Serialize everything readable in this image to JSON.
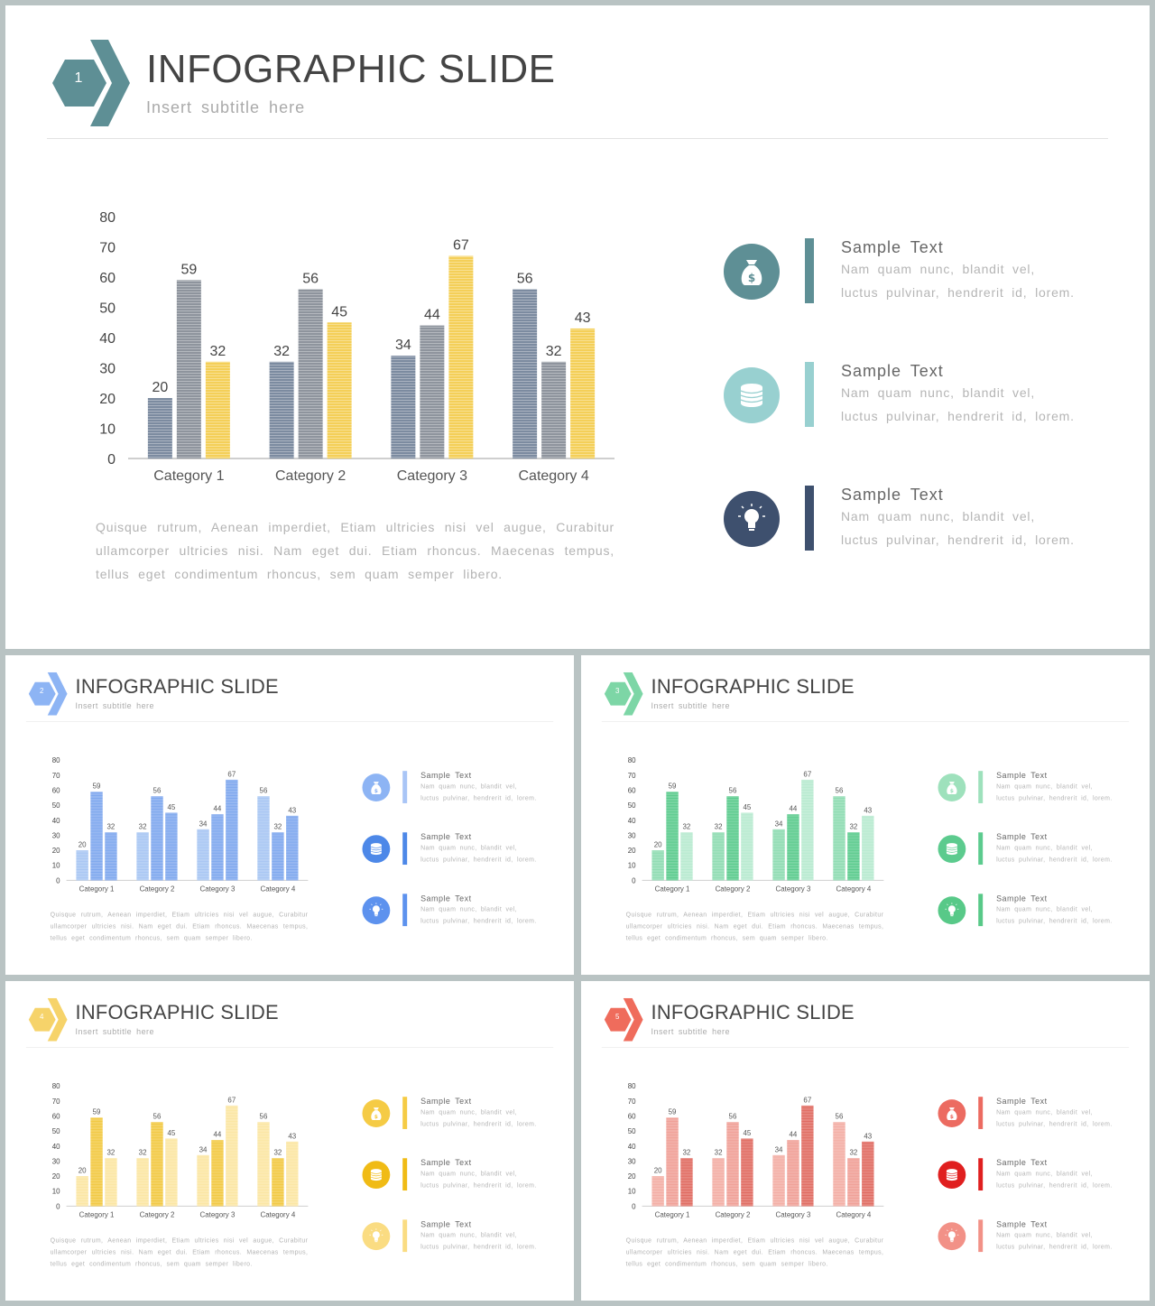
{
  "slide": {
    "title": "INFOGRAPHIC SLIDE",
    "subtitle": "Insert  subtitle  here",
    "paragraph": "Quisque  rutrum,  Aenean  imperdiet,  Etiam  ultricies  nisi  vel  augue,  Curabitur ullamcorper ultricies nisi. Nam eget dui. Etiam rhoncus. Maecenas tempus, tellus eget condimentum  rhoncus, sem quam semper libero.",
    "features": [
      {
        "title": "Sample  Text",
        "line1": "Nam  quam  nunc,  blandit  vel,",
        "line2": "luctus  pulvinar,  hendrerit  id,  lorem.",
        "icon": "money-bag-icon"
      },
      {
        "title": "Sample  Text",
        "line1": "Nam  quam  nunc,  blandit  vel,",
        "line2": "luctus  pulvinar,  hendrerit  id,  lorem.",
        "icon": "coins-stack-icon"
      },
      {
        "title": "Sample  Text",
        "line1": "Nam  quam  nunc,  blandit  vel,",
        "line2": "luctus  pulvinar,  hendrerit  id,  lorem.",
        "icon": "lightbulb-icon"
      }
    ]
  },
  "chart_data": {
    "type": "bar",
    "categories": [
      "Category 1",
      "Category 2",
      "Category 3",
      "Category 4"
    ],
    "series": [
      {
        "values": [
          20,
          32,
          34,
          56
        ]
      },
      {
        "values": [
          59,
          56,
          44,
          32
        ]
      },
      {
        "values": [
          32,
          45,
          67,
          43
        ]
      }
    ],
    "yticks": [
      "0",
      "10",
      "20",
      "30",
      "40",
      "50",
      "60",
      "70",
      "80"
    ],
    "ylim": [
      0,
      80
    ],
    "grid": false,
    "legend": "none"
  },
  "themes": [
    {
      "number": "1",
      "hex": "#5e8f95",
      "bars": [
        "#7c8ba0",
        "#8e949d",
        "#f4cf58"
      ],
      "labels": [
        "#444",
        "#444",
        "#444"
      ],
      "icons": [
        "#5e8f95",
        "#98d0d0",
        "#3e506e"
      ],
      "accents": [
        "#5e8f95",
        "#98d0d0",
        "#3e506e"
      ]
    },
    {
      "number": "2",
      "hex": "#8db4f4",
      "bars": [
        "#a8c6f3",
        "#7fa8ee",
        "#7fa8ee"
      ],
      "labels": [
        "#555",
        "#555",
        "#555"
      ],
      "icons": [
        "#8db4f4",
        "#4d88e8",
        "#5d92ee"
      ],
      "accents": [
        "#a9c5f6",
        "#4d88e8",
        "#5d92ee"
      ]
    },
    {
      "number": "3",
      "hex": "#7dd6a6",
      "bars": [
        "#8fdcb2",
        "#5ccb8e",
        "#b8ead0"
      ],
      "labels": [
        "#555",
        "#555",
        "#555"
      ],
      "icons": [
        "#9ee1bc",
        "#5ccb8e",
        "#58c988"
      ],
      "accents": [
        "#9ee1bc",
        "#5ccb8e",
        "#58c988"
      ]
    },
    {
      "number": "4",
      "hex": "#f6d36a",
      "bars": [
        "#fbe6a3",
        "#f2c943",
        "#fbe6a3"
      ],
      "labels": [
        "#555",
        "#555",
        "#555"
      ],
      "icons": [
        "#f5cb45",
        "#f0bb15",
        "#fadc82"
      ],
      "accents": [
        "#f5cb45",
        "#f0bb15",
        "#fadc82"
      ]
    },
    {
      "number": "5",
      "hex": "#ef6c5c",
      "bars": [
        "#f3aea5",
        "#f0a097",
        "#e06c62"
      ],
      "labels": [
        "#555",
        "#555",
        "#555"
      ],
      "icons": [
        "#ec6b61",
        "#e01f1f",
        "#f29187"
      ],
      "accents": [
        "#ec6b61",
        "#e01f1f",
        "#f29187"
      ]
    }
  ]
}
